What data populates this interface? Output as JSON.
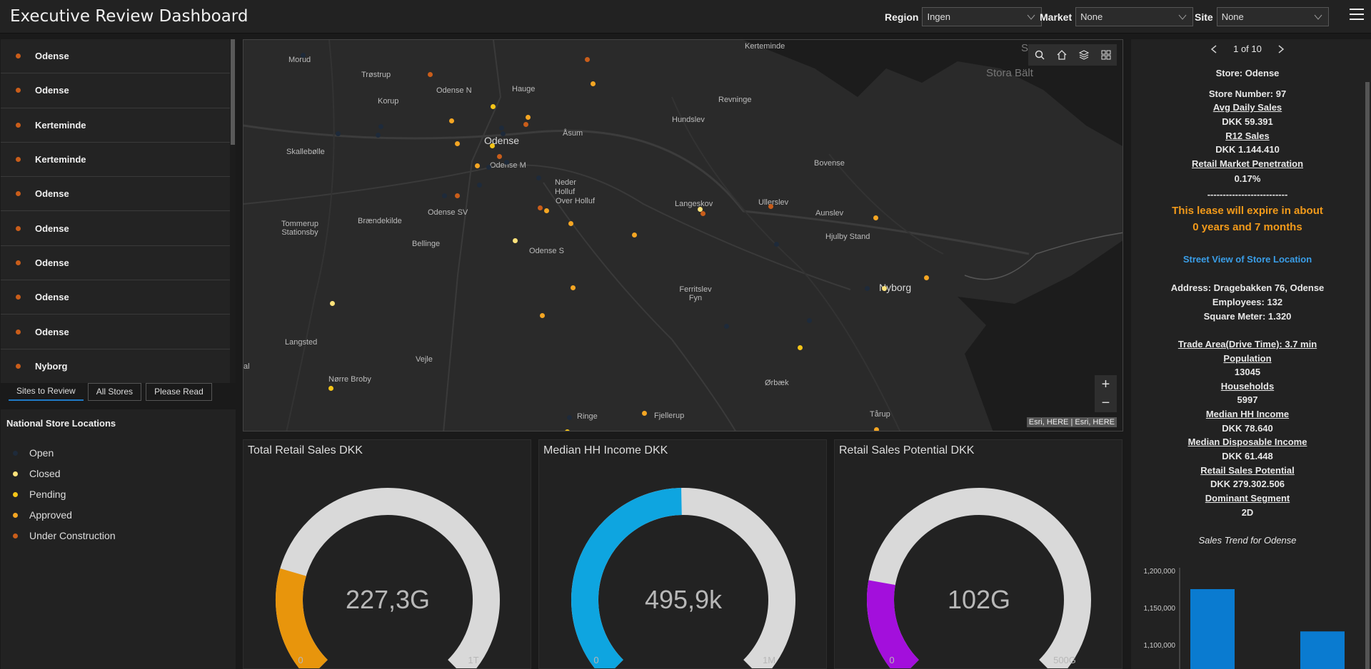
{
  "header": {
    "title": "Executive Review Dashboard",
    "filters": [
      {
        "label": "Region",
        "value": "Ingen"
      },
      {
        "label": "Market",
        "value": "None"
      },
      {
        "label": "Site",
        "value": "None"
      }
    ]
  },
  "site_list": [
    "Odense",
    "Odense",
    "Kerteminde",
    "Kerteminde",
    "Odense",
    "Odense",
    "Odense",
    "Odense",
    "Odense",
    "Nyborg"
  ],
  "tabs": [
    "Sites to Review",
    "All Stores",
    "Please Read"
  ],
  "legend": {
    "title": "National Store Locations",
    "items": [
      {
        "label": "Open",
        "color": "#1e2a3a"
      },
      {
        "label": "Closed",
        "color": "#ffe27a"
      },
      {
        "label": "Pending",
        "color": "#f5c518"
      },
      {
        "label": "Approved",
        "color": "#f5a623"
      },
      {
        "label": "Under Construction",
        "color": "#c95d1a"
      }
    ]
  },
  "map": {
    "places": [
      "Morud",
      "Trøstrup",
      "Odense N",
      "Hauge",
      "Korup",
      "Kerteminde",
      "Stora Bält",
      "Revninge",
      "Hundslev",
      "Åsum",
      "Skallebølle",
      "Odense",
      "Odense M",
      "Bovense",
      "Neder Holluf",
      "Over Holluf",
      "Langeskov",
      "Ullerslev",
      "Aunslev",
      "Odense SV",
      "Brændekilde",
      "Tommerup Stationsby",
      "Hjulby Stand",
      "Bellinge",
      "Odense S",
      "Nyborg",
      "Ferritslev Fyn",
      "Langsted",
      "Vejle",
      "Nørre Broby",
      "al",
      "Ørbæk",
      "Ringe",
      "Fjellerup",
      "Tårup",
      "S"
    ],
    "attribution": "Esri, HERE | Esri, HERE",
    "zoom_in": "+",
    "zoom_out": "−"
  },
  "gauges": [
    {
      "title": "Total Retail Sales DKK",
      "value_label": "227,3G",
      "min": "0",
      "max": "1T",
      "fraction": 0.227,
      "color": "#e8950c"
    },
    {
      "title": "Median HH Income DKK",
      "value_label": "495,9k",
      "min": "0",
      "max": "1M",
      "fraction": 0.496,
      "color": "#0ea5e0"
    },
    {
      "title": "Retail Sales Potential DKK",
      "value_label": "102G",
      "min": "0",
      "max": "500G",
      "fraction": 0.204,
      "color": "#a30fdc"
    }
  ],
  "details": {
    "pager": "1 of 10",
    "store": "Store: Odense",
    "store_number": "Store Number: 97",
    "avg_daily_sales_label": "Avg Daily Sales",
    "avg_daily_sales": "DKK 59.391",
    "r12_label": "R12 Sales",
    "r12": "DKK 1.144.410",
    "penetration_label": "Retail Market Penetration",
    "penetration": "0.17%",
    "separator": "--------------------------",
    "lease_1": "This lease will expire in about",
    "lease_2": "0 years and 7 months",
    "street_view": "Street View of Store Location",
    "address": "Address: Dragebakken 76, Odense",
    "employees": "Employees: 132",
    "square_meter": "Square Meter: 1.320",
    "trade_area": "Trade Area(Drive Time): 3.7 min",
    "population_label": "Population",
    "population": "13045",
    "households_label": "Households",
    "households": "5997",
    "median_hh_label": "Median HH Income",
    "median_hh": "DKK 78.640",
    "median_disp_label": "Median Disposable Income",
    "median_disp": "DKK 61.448",
    "rsp_label": "Retail Sales Potential",
    "rsp": "DKK 279.302.506",
    "segment_label": "Dominant Segment",
    "segment": "2D",
    "chart_title": "Sales Trend for Odense"
  },
  "chart_data": {
    "type": "bar",
    "title": "Sales Trend for Odense",
    "yticks": [
      "1,200,000",
      "1,150,000",
      "1,100,000"
    ],
    "ylim": [
      1100000,
      1200000
    ],
    "values": [
      1175000,
      1118000
    ],
    "color": "#0a7bd0"
  }
}
